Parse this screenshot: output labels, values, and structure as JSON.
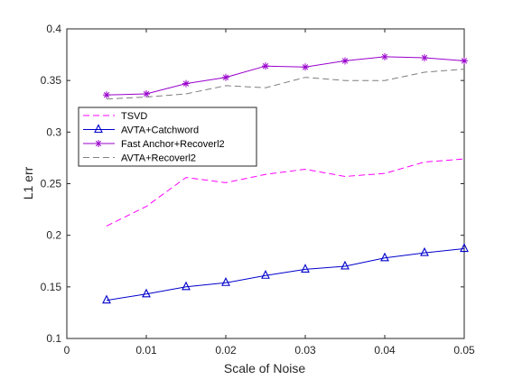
{
  "chart_data": {
    "type": "line",
    "xlabel": "Scale of Noise",
    "ylabel": "L1 err",
    "xlim": [
      0,
      0.05
    ],
    "ylim": [
      0.1,
      0.4
    ],
    "xticks": [
      0,
      0.01,
      0.02,
      0.03,
      0.04,
      0.05
    ],
    "xtick_labels": [
      "0",
      "0.01",
      "0.02",
      "0.03",
      "0.04",
      "0.05"
    ],
    "yticks": [
      0.1,
      0.15,
      0.2,
      0.25,
      0.3,
      0.35,
      0.4
    ],
    "ytick_labels": [
      "0.1",
      "0.15",
      "0.2",
      "0.25",
      "0.3",
      "0.35",
      "0.4"
    ],
    "grid": false,
    "legend_position": "center-left",
    "x": [
      0.005,
      0.01,
      0.015,
      0.02,
      0.025,
      0.03,
      0.035,
      0.04,
      0.045,
      0.05
    ],
    "series": [
      {
        "name": "TSVD",
        "color": "#ff00ff",
        "line_style": "dashed",
        "marker": "none",
        "values": [
          0.209,
          0.228,
          0.256,
          0.251,
          0.259,
          0.264,
          0.257,
          0.26,
          0.271,
          0.274
        ]
      },
      {
        "name": "AVTA+Catchword",
        "color": "#0000cc",
        "line_style": "solid",
        "marker": "triangle",
        "values": [
          0.137,
          0.143,
          0.15,
          0.154,
          0.161,
          0.167,
          0.17,
          0.178,
          0.183,
          0.187
        ]
      },
      {
        "name": "Fast Anchor+Recoverl2",
        "color": "#9900cc",
        "line_style": "solid",
        "marker": "asterisk",
        "values": [
          0.336,
          0.337,
          0.347,
          0.353,
          0.364,
          0.363,
          0.369,
          0.373,
          0.372,
          0.369
        ]
      },
      {
        "name": "AVTA+Recoverl2",
        "color": "#7f7f7f",
        "line_style": "dashed",
        "marker": "none",
        "values": [
          0.332,
          0.334,
          0.337,
          0.345,
          0.343,
          0.353,
          0.35,
          0.35,
          0.358,
          0.361
        ]
      }
    ]
  }
}
